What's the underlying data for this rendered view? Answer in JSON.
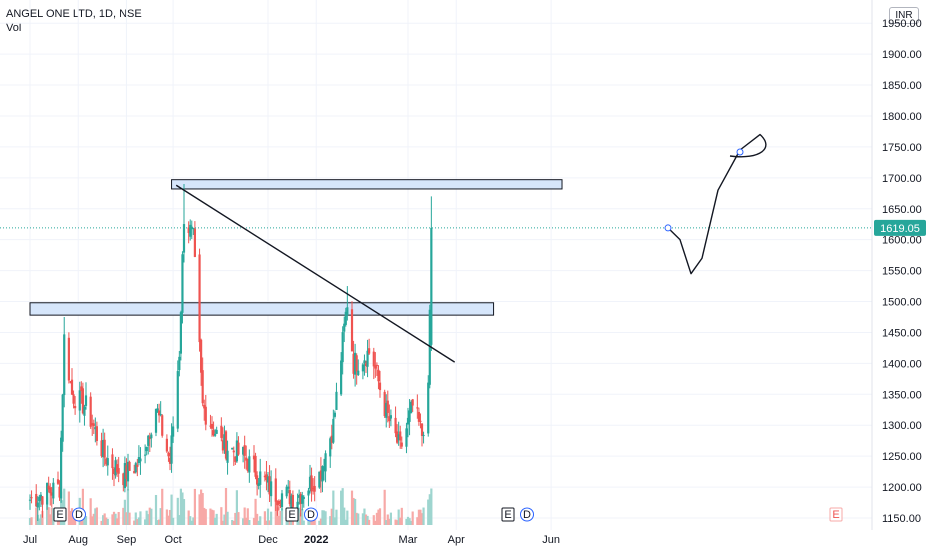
{
  "header": {
    "title": "ANGEL ONE LTD, 1D, NSE",
    "volume_label": "Vol"
  },
  "currency": "INR",
  "last_price_label": "1619.05",
  "event_markers": [
    "E",
    "D"
  ],
  "colors": {
    "up": "#26a69a",
    "down": "#ef5350",
    "vol_up": "#9ed5cf",
    "vol_down": "#f7a9a7",
    "zone_fill": "#d6e6fb",
    "grid": "#f0f3fa",
    "last_line": "#26a69a"
  },
  "chart_data": {
    "type": "candlestick",
    "title": "ANGEL ONE LTD, 1D, NSE",
    "ylabel": "",
    "ylim": [
      1140,
      1960
    ],
    "y_ticks": [
      1150,
      1200,
      1250,
      1300,
      1350,
      1400,
      1450,
      1500,
      1550,
      1600,
      1650,
      1700,
      1750,
      1800,
      1850,
      1900,
      1950
    ],
    "x_ticks": [
      "Jul",
      "Aug",
      "Sep",
      "Oct",
      "Dec",
      "2022",
      "Mar",
      "Apr",
      "Jun"
    ],
    "last_price": 1619.05,
    "peaks": [
      {
        "date": "2021-07-23",
        "high": 1475
      },
      {
        "date": "2021-10-08",
        "high": 1690
      },
      {
        "date": "2022-01-21",
        "high": 1525
      },
      {
        "date": "2022-03-16",
        "high": 1670
      }
    ],
    "resistance_zones": [
      {
        "from": 1682,
        "to": 1697,
        "start": "2021-09-30",
        "end": "2022-06-08"
      },
      {
        "from": 1478,
        "to": 1498,
        "start": "2021-07-01",
        "end": "2022-04-25"
      }
    ],
    "trendline": {
      "start": {
        "date": "2021-10-03",
        "price": 1688
      },
      "end": {
        "date": "2022-03-31",
        "price": 1402
      }
    },
    "projection_path": [
      1619,
      1600,
      1545,
      1570,
      1680,
      1745,
      1770
    ]
  }
}
